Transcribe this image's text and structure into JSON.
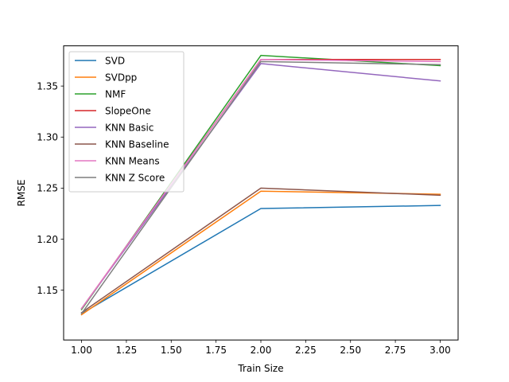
{
  "chart_data": {
    "type": "line",
    "title": "",
    "xlabel": "Train Size",
    "ylabel": "RMSE",
    "xlim": [
      0.9,
      3.1
    ],
    "ylim": [
      1.1012,
      1.3894
    ],
    "xticks": [
      1.0,
      1.25,
      1.5,
      1.75,
      2.0,
      2.25,
      2.5,
      2.75,
      3.0
    ],
    "xtick_labels": [
      "1.00",
      "1.25",
      "1.50",
      "1.75",
      "2.00",
      "2.25",
      "2.50",
      "2.75",
      "3.00"
    ],
    "yticks": [
      1.15,
      1.2,
      1.25,
      1.3,
      1.35
    ],
    "ytick_labels": [
      "1.15",
      "1.20",
      "1.25",
      "1.30",
      "1.35"
    ],
    "grid": false,
    "legend_position": "top-left",
    "x": [
      1,
      2,
      3
    ],
    "series": [
      {
        "name": "SVD",
        "color": "#1f77b4",
        "values": [
          1.127,
          1.23,
          1.233
        ]
      },
      {
        "name": "SVDpp",
        "color": "#ff7f0e",
        "values": [
          1.126,
          1.247,
          1.244
        ]
      },
      {
        "name": "NMF",
        "color": "#2ca02c",
        "values": [
          1.131,
          1.38,
          1.37
        ]
      },
      {
        "name": "SlopeOne",
        "color": "#d62728",
        "values": [
          1.132,
          1.376,
          1.376
        ]
      },
      {
        "name": "KNN Basic",
        "color": "#9467bd",
        "values": [
          1.132,
          1.372,
          1.355
        ]
      },
      {
        "name": "KNN Baseline",
        "color": "#8c564b",
        "values": [
          1.128,
          1.25,
          1.243
        ]
      },
      {
        "name": "KNN Means",
        "color": "#e377c2",
        "values": [
          1.132,
          1.376,
          1.374
        ]
      },
      {
        "name": "KNN Z Score",
        "color": "#7f7f7f",
        "values": [
          1.127,
          1.374,
          1.371
        ]
      }
    ]
  }
}
